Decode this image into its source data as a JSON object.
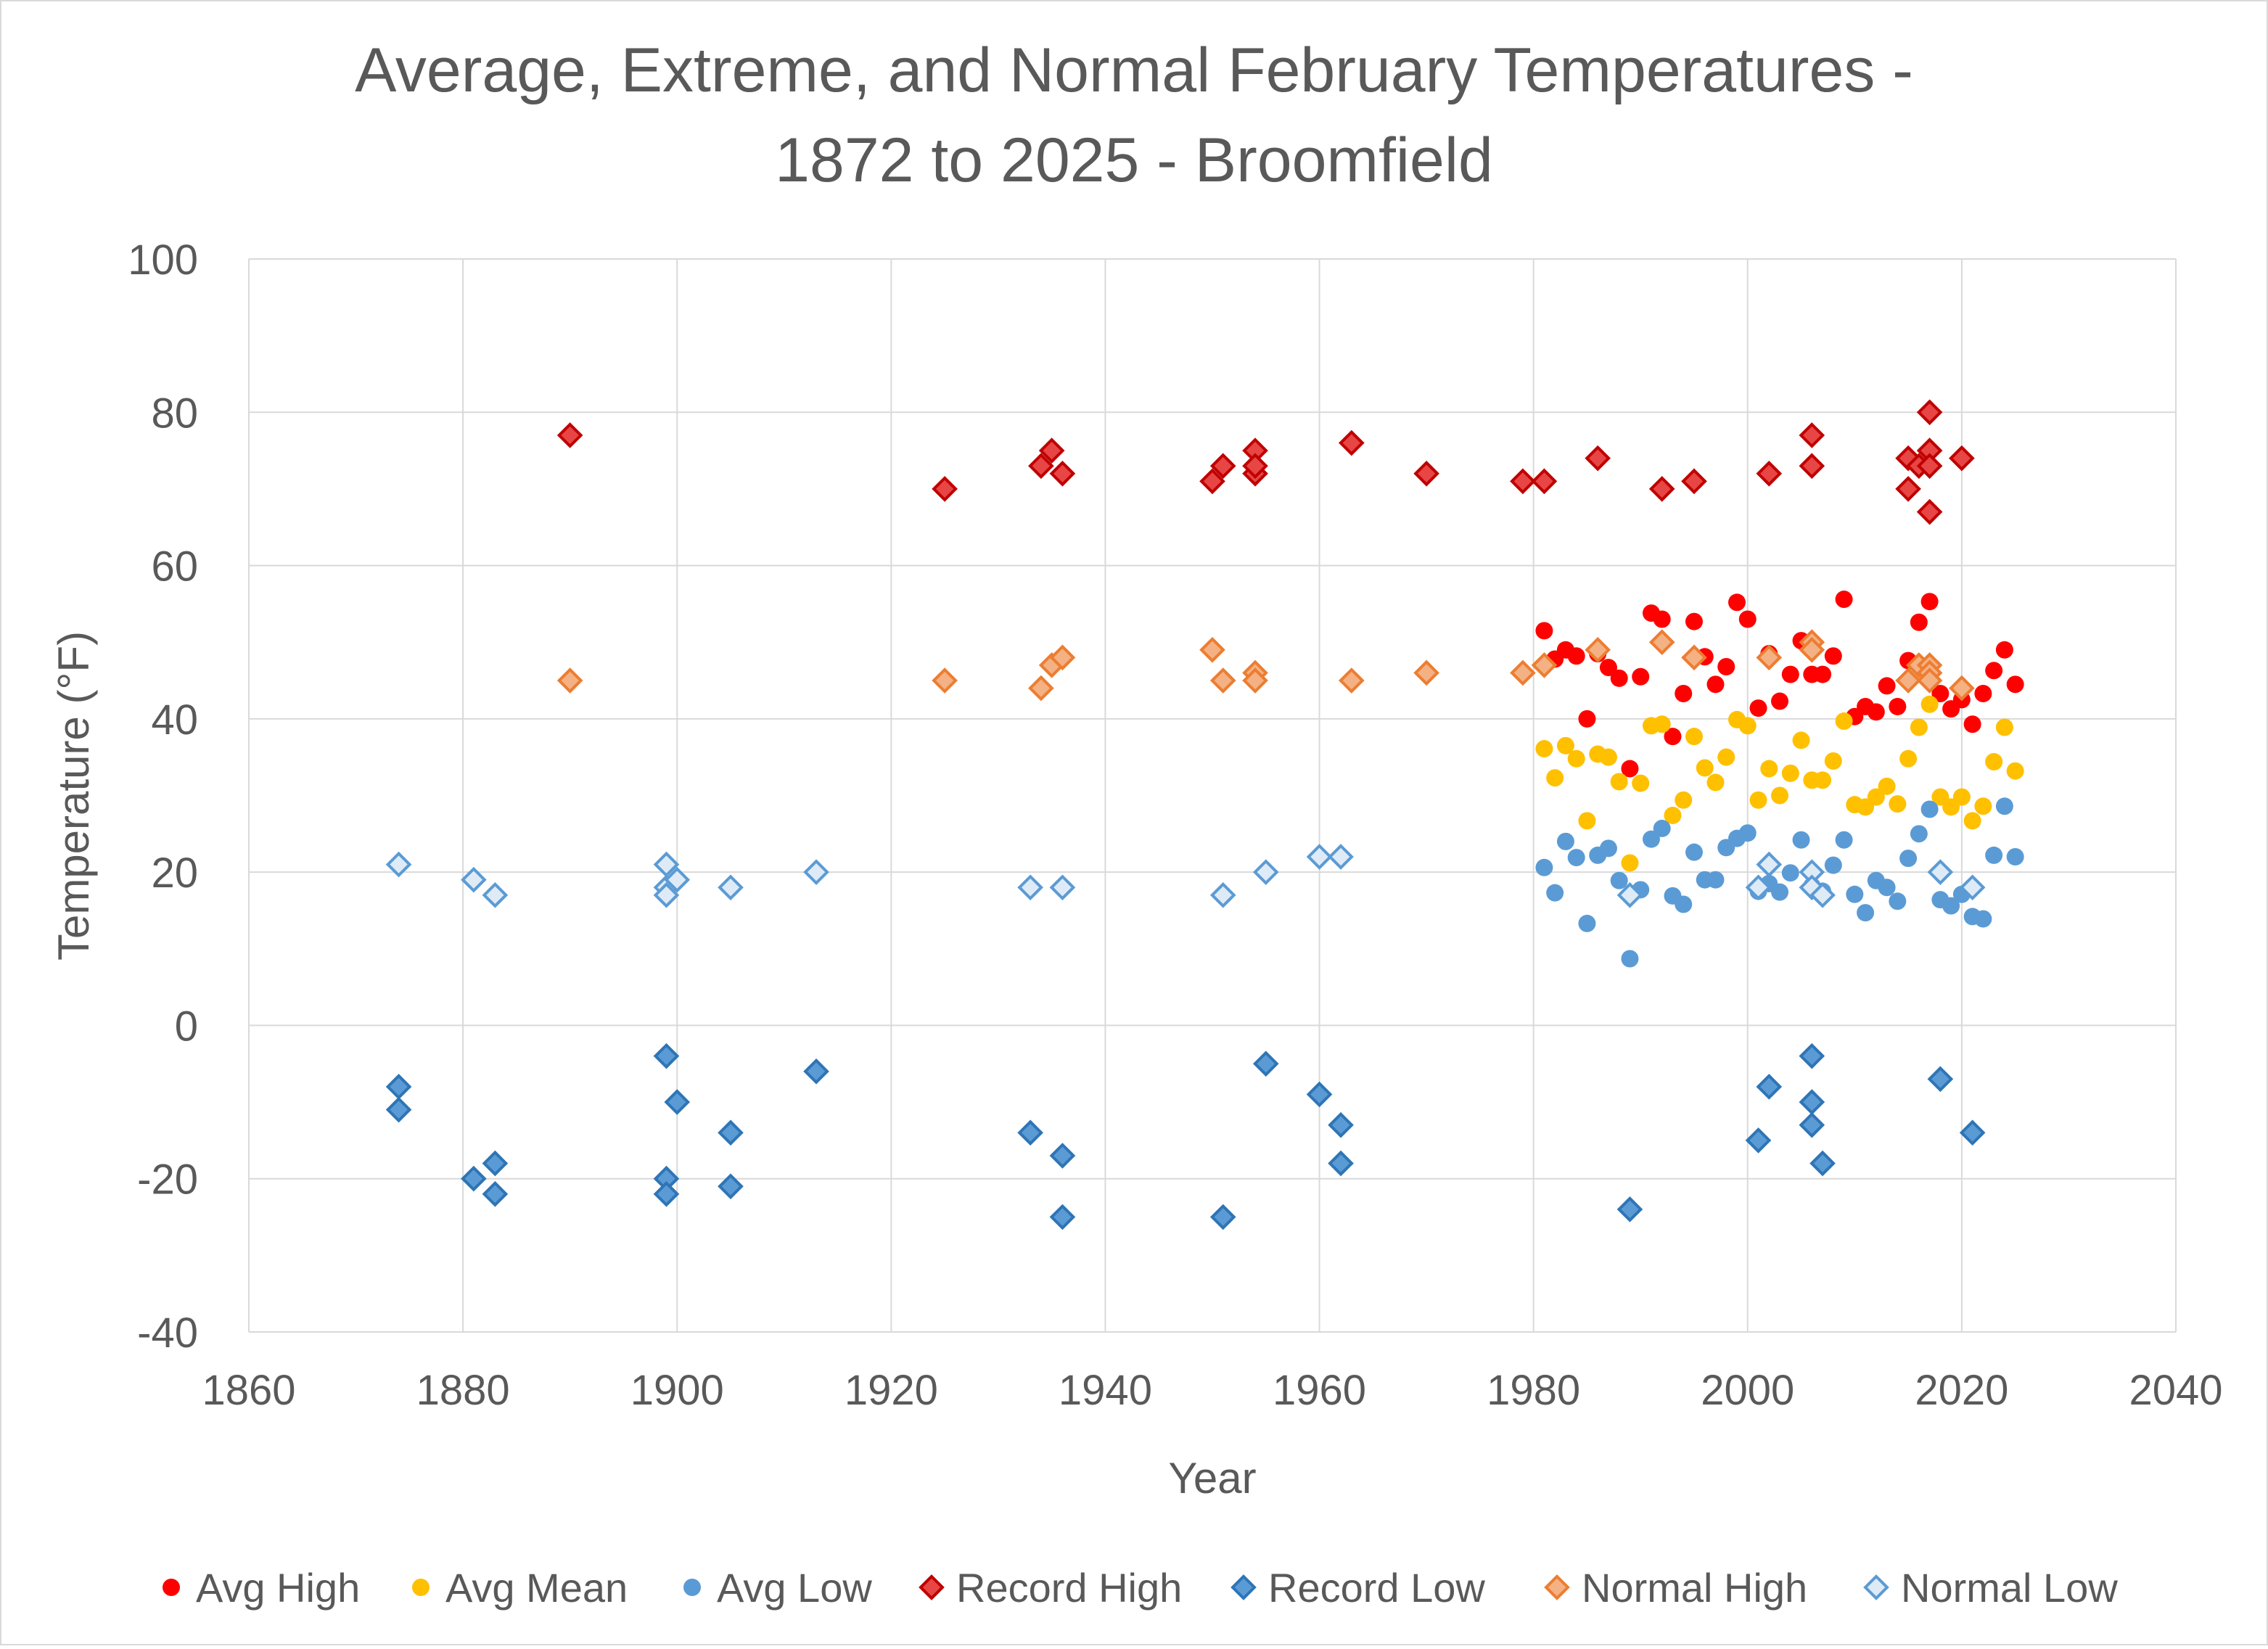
{
  "chart_data": {
    "type": "scatter",
    "title": [
      "Average, Extreme, and Normal February Temperatures -",
      "1872 to 2025 - Broomfield"
    ],
    "xlabel": "Year",
    "ylabel": "Temperature (°F)",
    "xlim": [
      1860,
      2040
    ],
    "ylim": [
      -40,
      100
    ],
    "xticks": [
      1860,
      1880,
      1900,
      1920,
      1940,
      1960,
      1980,
      2000,
      2020,
      2040
    ],
    "yticks": [
      -40,
      -20,
      0,
      20,
      40,
      60,
      80,
      100
    ],
    "grid": true,
    "legend_position": "bottom",
    "series": [
      {
        "name": "Avg High",
        "marker": "circle",
        "fill": "#FF0000",
        "stroke": "#FF0000",
        "points": [
          [
            1981,
            51.5
          ],
          [
            1982,
            47.8
          ],
          [
            1983,
            49
          ],
          [
            1984,
            48.2
          ],
          [
            1985,
            40
          ],
          [
            1986,
            48.5
          ],
          [
            1987,
            46.7
          ],
          [
            1988,
            45.3
          ],
          [
            1989,
            33.5
          ],
          [
            1990,
            45.5
          ],
          [
            1991,
            53.8
          ],
          [
            1992,
            53
          ],
          [
            1993,
            37.7
          ],
          [
            1994,
            43.3
          ],
          [
            1995,
            52.7
          ],
          [
            1996,
            48.1
          ],
          [
            1997,
            44.5
          ],
          [
            1998,
            46.8
          ],
          [
            1999,
            55.2
          ],
          [
            2000,
            53
          ],
          [
            2001,
            41.4
          ],
          [
            2002,
            48.5
          ],
          [
            2003,
            42.3
          ],
          [
            2004,
            45.8
          ],
          [
            2005,
            50.2
          ],
          [
            2006,
            45.8
          ],
          [
            2007,
            45.8
          ],
          [
            2008,
            48.2
          ],
          [
            2009,
            55.6
          ],
          [
            2010,
            40.3
          ],
          [
            2011,
            41.6
          ],
          [
            2012,
            40.9
          ],
          [
            2013,
            44.3
          ],
          [
            2014,
            41.6
          ],
          [
            2015,
            47.6
          ],
          [
            2016,
            52.6
          ],
          [
            2017,
            55.3
          ],
          [
            2018,
            43.3
          ],
          [
            2019,
            41.3
          ],
          [
            2020,
            42.5
          ],
          [
            2021,
            39.3
          ],
          [
            2022,
            43.3
          ],
          [
            2023,
            46.3
          ],
          [
            2024,
            49
          ],
          [
            2025,
            44.5
          ]
        ]
      },
      {
        "name": "Avg Mean",
        "marker": "circle",
        "fill": "#FFC000",
        "stroke": "#FFC000",
        "points": [
          [
            1981,
            36.1
          ],
          [
            1982,
            32.3
          ],
          [
            1983,
            36.5
          ],
          [
            1984,
            34.8
          ],
          [
            1985,
            26.7
          ],
          [
            1986,
            35.4
          ],
          [
            1987,
            35
          ],
          [
            1988,
            31.8
          ],
          [
            1989,
            21.2
          ],
          [
            1990,
            31.6
          ],
          [
            1991,
            39.1
          ],
          [
            1992,
            39.3
          ],
          [
            1993,
            27.4
          ],
          [
            1994,
            29.4
          ],
          [
            1995,
            37.7
          ],
          [
            1996,
            33.6
          ],
          [
            1997,
            31.7
          ],
          [
            1998,
            35
          ],
          [
            1999,
            39.9
          ],
          [
            2000,
            39.1
          ],
          [
            2001,
            29.4
          ],
          [
            2002,
            33.5
          ],
          [
            2003,
            30
          ],
          [
            2004,
            32.9
          ],
          [
            2005,
            37.2
          ],
          [
            2006,
            32
          ],
          [
            2007,
            32
          ],
          [
            2008,
            34.5
          ],
          [
            2009,
            39.7
          ],
          [
            2010,
            28.8
          ],
          [
            2011,
            28.5
          ],
          [
            2012,
            29.8
          ],
          [
            2013,
            31.2
          ],
          [
            2014,
            28.9
          ],
          [
            2015,
            34.8
          ],
          [
            2016,
            38.9
          ],
          [
            2017,
            41.9
          ],
          [
            2018,
            29.8
          ],
          [
            2019,
            28.5
          ],
          [
            2020,
            29.8
          ],
          [
            2021,
            26.7
          ],
          [
            2022,
            28.6
          ],
          [
            2023,
            34.4
          ],
          [
            2024,
            38.9
          ],
          [
            2025,
            33.2
          ]
        ]
      },
      {
        "name": "Avg Low",
        "marker": "circle",
        "fill": "#5B9BD5",
        "stroke": "#5B9BD5",
        "points": [
          [
            1981,
            20.6
          ],
          [
            1982,
            17.3
          ],
          [
            1983,
            24
          ],
          [
            1984,
            21.9
          ],
          [
            1985,
            13.3
          ],
          [
            1986,
            22.2
          ],
          [
            1987,
            23.1
          ],
          [
            1988,
            18.9
          ],
          [
            1989,
            8.7
          ],
          [
            1990,
            17.7
          ],
          [
            1991,
            24.3
          ],
          [
            1992,
            25.7
          ],
          [
            1993,
            16.9
          ],
          [
            1994,
            15.8
          ],
          [
            1995,
            22.6
          ],
          [
            1996,
            19
          ],
          [
            1997,
            19
          ],
          [
            1998,
            23.2
          ],
          [
            1999,
            24.4
          ],
          [
            2000,
            25.1
          ],
          [
            2001,
            17.5
          ],
          [
            2002,
            18.5
          ],
          [
            2003,
            17.4
          ],
          [
            2004,
            19.9
          ],
          [
            2005,
            24.2
          ],
          [
            2006,
            18.2
          ],
          [
            2007,
            17.5
          ],
          [
            2008,
            20.9
          ],
          [
            2009,
            24.2
          ],
          [
            2010,
            17.1
          ],
          [
            2011,
            14.7
          ],
          [
            2012,
            18.9
          ],
          [
            2013,
            18
          ],
          [
            2014,
            16.2
          ],
          [
            2015,
            21.8
          ],
          [
            2016,
            25
          ],
          [
            2017,
            28.2
          ],
          [
            2018,
            16.4
          ],
          [
            2019,
            15.6
          ],
          [
            2020,
            17.1
          ],
          [
            2021,
            14.2
          ],
          [
            2022,
            13.9
          ],
          [
            2023,
            22.2
          ],
          [
            2024,
            28.6
          ],
          [
            2025,
            22
          ]
        ]
      },
      {
        "name": "Record High",
        "marker": "diamond",
        "fill": "#E84545",
        "stroke": "#C00000",
        "points": [
          [
            1890,
            77
          ],
          [
            1925,
            70
          ],
          [
            1934,
            73
          ],
          [
            1935,
            75
          ],
          [
            1936,
            72
          ],
          [
            1950,
            71
          ],
          [
            1951,
            73
          ],
          [
            1954,
            75
          ],
          [
            1954,
            72
          ],
          [
            1954,
            73
          ],
          [
            1963,
            76
          ],
          [
            1970,
            72
          ],
          [
            1979,
            71
          ],
          [
            1981,
            71
          ],
          [
            1986,
            74
          ],
          [
            1992,
            70
          ],
          [
            1995,
            71
          ],
          [
            2002,
            72
          ],
          [
            2006,
            77
          ],
          [
            2006,
            73
          ],
          [
            2015,
            74
          ],
          [
            2015,
            70
          ],
          [
            2016,
            73
          ],
          [
            2017,
            80
          ],
          [
            2017,
            75
          ],
          [
            2017,
            73
          ],
          [
            2017,
            67
          ],
          [
            2020,
            74
          ]
        ]
      },
      {
        "name": "Record Low",
        "marker": "diamond",
        "fill": "#5B9BD5",
        "stroke": "#2E75B6",
        "points": [
          [
            1874,
            -8
          ],
          [
            1874,
            -11
          ],
          [
            1881,
            -20
          ],
          [
            1883,
            -18
          ],
          [
            1883,
            -22
          ],
          [
            1899,
            -4
          ],
          [
            1899,
            -20
          ],
          [
            1899,
            -22
          ],
          [
            1900,
            -10
          ],
          [
            1905,
            -14
          ],
          [
            1905,
            -21
          ],
          [
            1913,
            -6
          ],
          [
            1933,
            -14
          ],
          [
            1936,
            -17
          ],
          [
            1936,
            -25
          ],
          [
            1951,
            -25
          ],
          [
            1955,
            -5
          ],
          [
            1960,
            -9
          ],
          [
            1962,
            -13
          ],
          [
            1962,
            -18
          ],
          [
            1989,
            -24
          ],
          [
            2001,
            -15
          ],
          [
            2002,
            -8
          ],
          [
            2006,
            -4
          ],
          [
            2006,
            -10
          ],
          [
            2006,
            -13
          ],
          [
            2007,
            -18
          ],
          [
            2018,
            -7
          ],
          [
            2021,
            -14
          ]
        ]
      },
      {
        "name": "Normal High",
        "marker": "diamond",
        "fill": "#F4B183",
        "stroke": "#ED7D31",
        "points": [
          [
            1890,
            45
          ],
          [
            1925,
            45
          ],
          [
            1934,
            44
          ],
          [
            1935,
            47
          ],
          [
            1936,
            48
          ],
          [
            1950,
            49
          ],
          [
            1951,
            45
          ],
          [
            1954,
            46
          ],
          [
            1954,
            45
          ],
          [
            1963,
            45
          ],
          [
            1970,
            46
          ],
          [
            1979,
            46
          ],
          [
            1981,
            47
          ],
          [
            1986,
            49
          ],
          [
            1992,
            50
          ],
          [
            1995,
            48
          ],
          [
            2002,
            48
          ],
          [
            2006,
            50
          ],
          [
            2006,
            49
          ],
          [
            2015,
            45
          ],
          [
            2016,
            47
          ],
          [
            2017,
            47
          ],
          [
            2017,
            46
          ],
          [
            2017,
            45
          ],
          [
            2020,
            44
          ]
        ]
      },
      {
        "name": "Normal Low",
        "marker": "diamond",
        "fill": "#DEEBF7",
        "stroke": "#5B9BD5",
        "points": [
          [
            1874,
            21
          ],
          [
            1881,
            19
          ],
          [
            1883,
            17
          ],
          [
            1899,
            21
          ],
          [
            1899,
            18
          ],
          [
            1899,
            17
          ],
          [
            1900,
            19
          ],
          [
            1905,
            18
          ],
          [
            1913,
            20
          ],
          [
            1933,
            18
          ],
          [
            1936,
            18
          ],
          [
            1951,
            17
          ],
          [
            1955,
            20
          ],
          [
            1960,
            22
          ],
          [
            1962,
            22
          ],
          [
            1989,
            17
          ],
          [
            2001,
            18
          ],
          [
            2002,
            21
          ],
          [
            2006,
            20
          ],
          [
            2006,
            18
          ],
          [
            2007,
            17
          ],
          [
            2018,
            20
          ],
          [
            2021,
            18
          ]
        ]
      }
    ]
  }
}
